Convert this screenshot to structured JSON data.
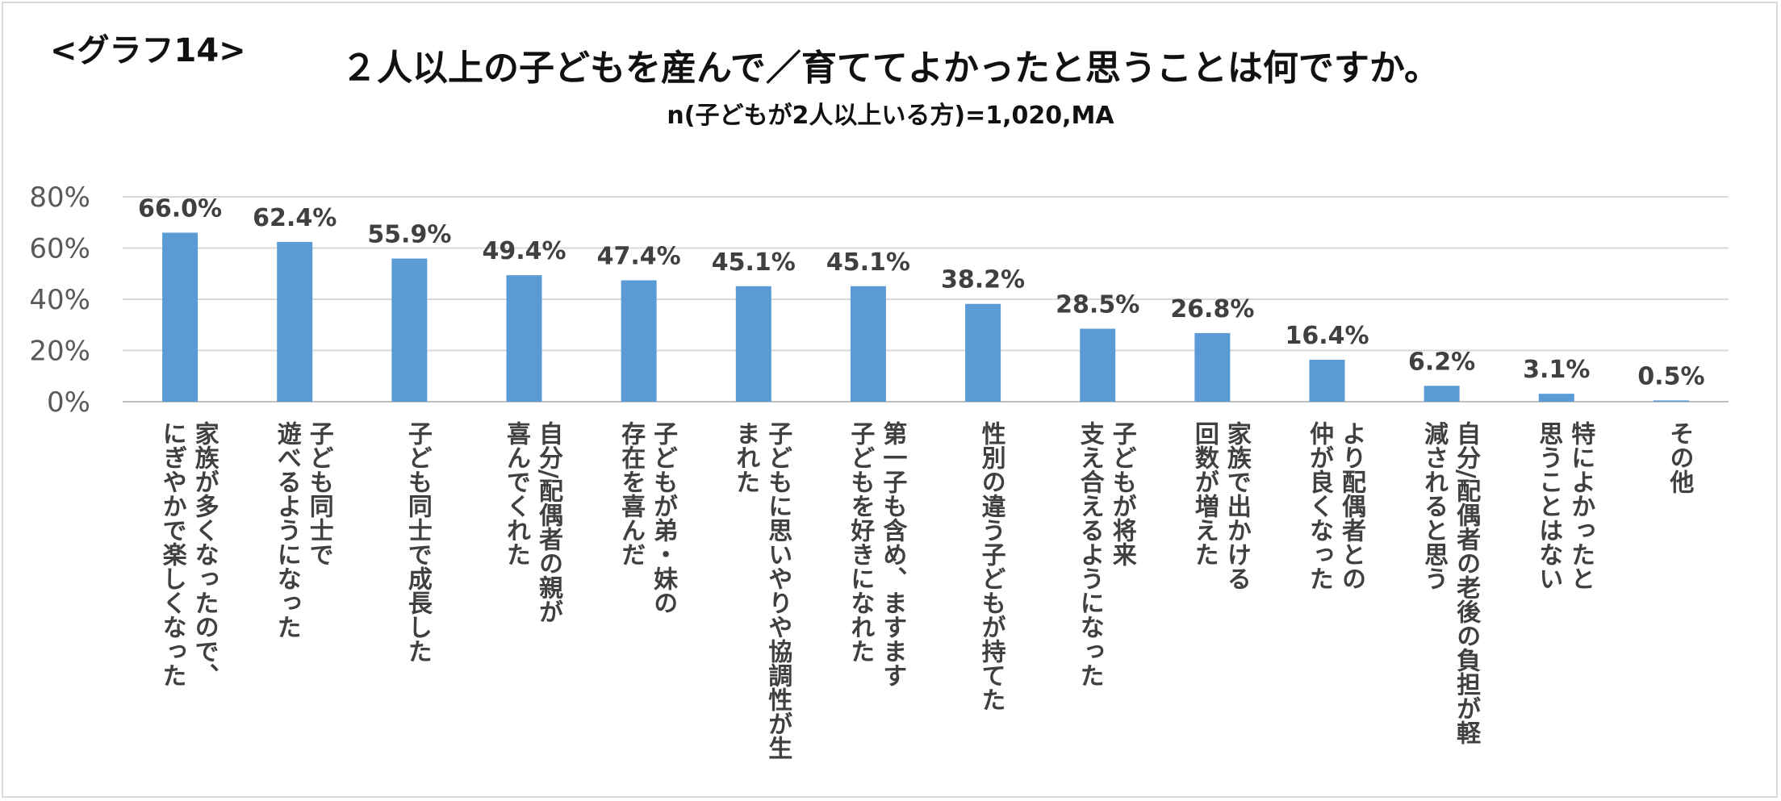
{
  "header": {
    "graph_label": "<グラフ14>",
    "title": "２人以上の子どもを産んで／育ててよかったと思うことは何ですか。",
    "subtitle": "n(子どもが2人以上いる方)=1,020,MA"
  },
  "chart_data": {
    "type": "bar",
    "title": "２人以上の子どもを産んで／育ててよかったと思うことは何ですか。",
    "subtitle": "n(子どもが2人以上いる方)=1,020,MA",
    "ylim": [
      0,
      80
    ],
    "yticks": [
      "0%",
      "20%",
      "40%",
      "60%",
      "80%"
    ],
    "grid": true,
    "bar_color": "#5b9bd5",
    "categories": [
      [
        "家族が多くなったので、",
        "にぎやかで楽しくなった"
      ],
      [
        "子ども同士で",
        "遊べるようになった"
      ],
      [
        "子ども同士で成長した"
      ],
      [
        "自分/配偶者の親が",
        "喜んでくれた"
      ],
      [
        "子どもが弟・妹の",
        "存在を喜んだ"
      ],
      [
        "子どもに思いやりや協調性が生",
        "まれた"
      ],
      [
        "第一子も含め、ますます",
        "子どもを好きになれた"
      ],
      [
        "性別の違う子どもが持てた"
      ],
      [
        "子どもが将来",
        "支え合えるようになった"
      ],
      [
        "家族で出かける",
        "回数が増えた"
      ],
      [
        "より配偶者との",
        "仲が良くなった"
      ],
      [
        "自分/配偶者の老後の負担が軽",
        "減されると思う"
      ],
      [
        "特によかったと",
        "思うことはない"
      ],
      [
        "その他"
      ]
    ],
    "values": [
      66.0,
      62.4,
      55.9,
      49.4,
      47.4,
      45.1,
      45.1,
      38.2,
      28.5,
      26.8,
      16.4,
      6.2,
      3.1,
      0.5
    ],
    "value_labels": [
      "66.0%",
      "62.4%",
      "55.9%",
      "49.4%",
      "47.4%",
      "45.1%",
      "45.1%",
      "38.2%",
      "28.5%",
      "26.8%",
      "16.4%",
      "6.2%",
      "3.1%",
      "0.5%"
    ]
  }
}
